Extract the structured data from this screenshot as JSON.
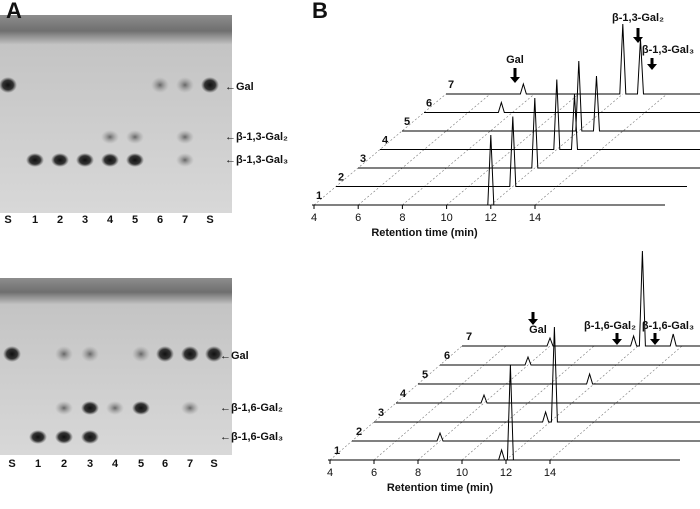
{
  "panel_a": {
    "label": "A",
    "plates": [
      {
        "lanes": [
          "S",
          "1",
          "2",
          "3",
          "4",
          "5",
          "6",
          "7",
          "S"
        ],
        "bands": [
          "←Gal",
          "←β-1,3-Gal₂",
          "←β-1,3-Gal₃"
        ]
      },
      {
        "lanes": [
          "S",
          "1",
          "2",
          "3",
          "4",
          "5",
          "6",
          "7",
          "S"
        ],
        "bands": [
          "←Gal",
          "←β-1,6-Gal₂",
          "←β-1,6-Gal₃"
        ]
      }
    ]
  },
  "panel_b": {
    "label": "B",
    "chromatograms": [
      {
        "traces": [
          "1",
          "2",
          "3",
          "4",
          "5",
          "6",
          "7"
        ],
        "peaks": [
          "Gal",
          "β-1,3-Gal₂",
          "β-1,3-Gal₃"
        ],
        "x_ticks": [
          4,
          6,
          8,
          10,
          12,
          14
        ],
        "x_label": "Retention time (min)"
      },
      {
        "traces": [
          "1",
          "2",
          "3",
          "4",
          "5",
          "6",
          "7"
        ],
        "peaks": [
          "Gal",
          "β-1,6-Gal₂",
          "β-1,6-Gal₃"
        ],
        "x_ticks": [
          4,
          6,
          8,
          10,
          12,
          14
        ],
        "x_label": "Retention time (min)"
      }
    ]
  }
}
